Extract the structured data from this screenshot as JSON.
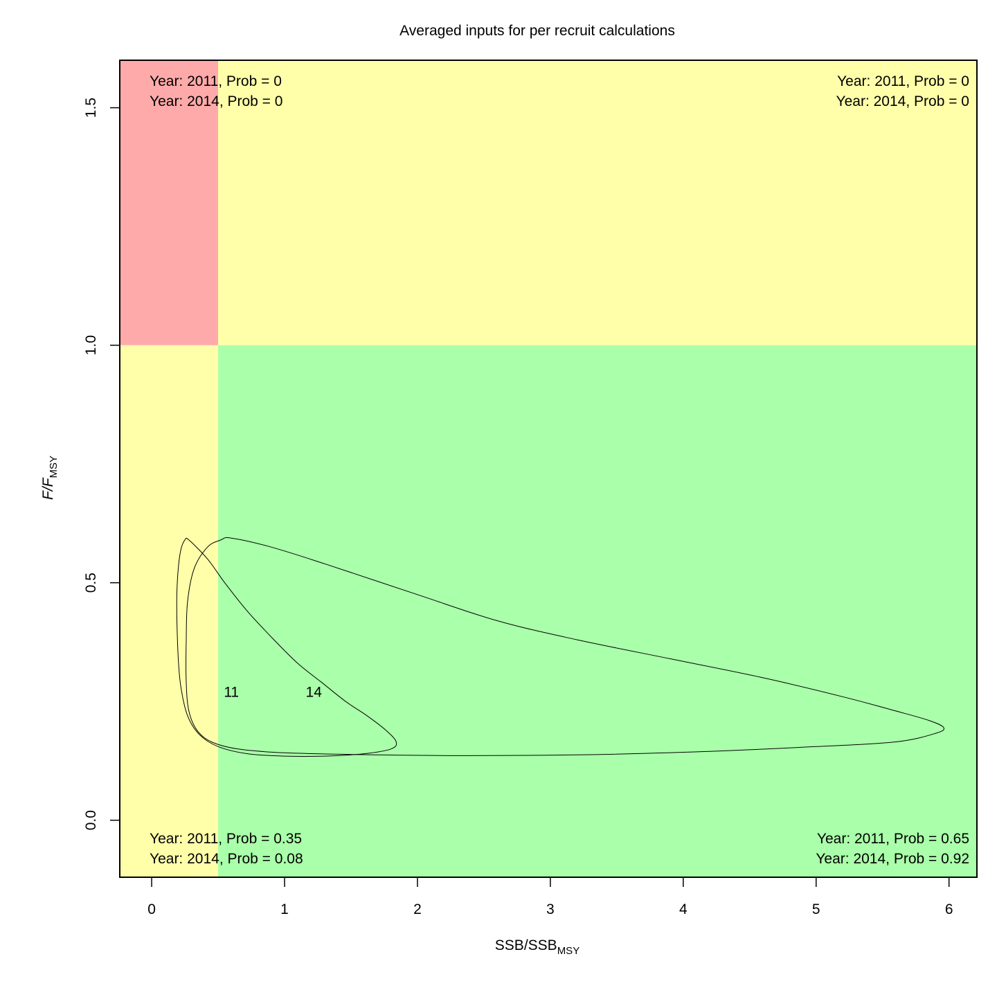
{
  "chart_data": {
    "type": "kobe-contour",
    "title": "Averaged inputs for per recruit calculations",
    "xlabel": {
      "main": "SSB/SSB",
      "sub": "MSY"
    },
    "ylabel": {
      "main": "F/F",
      "sub": "MSY"
    },
    "xlim": [
      -0.24,
      6.21
    ],
    "ylim": [
      -0.12,
      1.6
    ],
    "x_ticks": [
      0,
      1,
      2,
      3,
      4,
      5,
      6
    ],
    "x_tick_labels": [
      "0",
      "1",
      "2",
      "3",
      "4",
      "5",
      "6"
    ],
    "y_ticks": [
      0.0,
      0.5,
      1.0,
      1.5
    ],
    "y_tick_labels": [
      "0.0",
      "0.5",
      "1.0",
      "1.5"
    ],
    "reference_lines": {
      "ssb_limit": 0.5,
      "f_limit": 1.0
    },
    "colors": {
      "overfished_overfishing": "#ffaaaa",
      "caution": "#ffffaa",
      "healthy": "#aaffaa",
      "frame": "#000000"
    },
    "quadrant_labels": {
      "top_left": [
        "Year: 2011, Prob = 0",
        "Year: 2014, Prob = 0"
      ],
      "top_right": [
        "Year: 2011, Prob = 0",
        "Year: 2014, Prob = 0"
      ],
      "bottom_left": [
        "Year: 2011, Prob = 0.35",
        "Year: 2014, Prob = 0.08"
      ],
      "bottom_right": [
        "Year: 2011, Prob = 0.65",
        "Year: 2014, Prob = 0.92"
      ]
    },
    "series": [
      {
        "name": "11",
        "label_position": [
          0.6,
          0.27
        ],
        "contour": [
          [
            0.28,
            0.59
          ],
          [
            0.42,
            0.55
          ],
          [
            0.55,
            0.5
          ],
          [
            0.72,
            0.44
          ],
          [
            0.92,
            0.38
          ],
          [
            1.1,
            0.33
          ],
          [
            1.28,
            0.29
          ],
          [
            1.46,
            0.25
          ],
          [
            1.62,
            0.22
          ],
          [
            1.76,
            0.19
          ],
          [
            1.84,
            0.165
          ],
          [
            1.8,
            0.15
          ],
          [
            1.6,
            0.14
          ],
          [
            1.3,
            0.135
          ],
          [
            1.0,
            0.135
          ],
          [
            0.72,
            0.14
          ],
          [
            0.5,
            0.155
          ],
          [
            0.36,
            0.18
          ],
          [
            0.27,
            0.22
          ],
          [
            0.22,
            0.28
          ],
          [
            0.2,
            0.34
          ],
          [
            0.19,
            0.42
          ],
          [
            0.19,
            0.48
          ],
          [
            0.2,
            0.53
          ],
          [
            0.22,
            0.57
          ],
          [
            0.25,
            0.59
          ]
        ]
      },
      {
        "name": "14",
        "label_position": [
          1.22,
          0.27
        ],
        "contour": [
          [
            0.6,
            0.594
          ],
          [
            0.9,
            0.575
          ],
          [
            1.3,
            0.54
          ],
          [
            2.0,
            0.475
          ],
          [
            2.6,
            0.42
          ],
          [
            3.2,
            0.38
          ],
          [
            3.9,
            0.34
          ],
          [
            4.6,
            0.3
          ],
          [
            5.2,
            0.26
          ],
          [
            5.6,
            0.23
          ],
          [
            5.85,
            0.21
          ],
          [
            5.96,
            0.195
          ],
          [
            5.9,
            0.183
          ],
          [
            5.6,
            0.165
          ],
          [
            5.0,
            0.155
          ],
          [
            4.2,
            0.145
          ],
          [
            3.3,
            0.138
          ],
          [
            2.4,
            0.136
          ],
          [
            1.6,
            0.138
          ],
          [
            1.0,
            0.142
          ],
          [
            0.65,
            0.15
          ],
          [
            0.45,
            0.165
          ],
          [
            0.34,
            0.19
          ],
          [
            0.28,
            0.23
          ],
          [
            0.26,
            0.29
          ],
          [
            0.26,
            0.38
          ],
          [
            0.27,
            0.46
          ],
          [
            0.32,
            0.53
          ],
          [
            0.42,
            0.575
          ],
          [
            0.52,
            0.59
          ]
        ]
      }
    ]
  }
}
